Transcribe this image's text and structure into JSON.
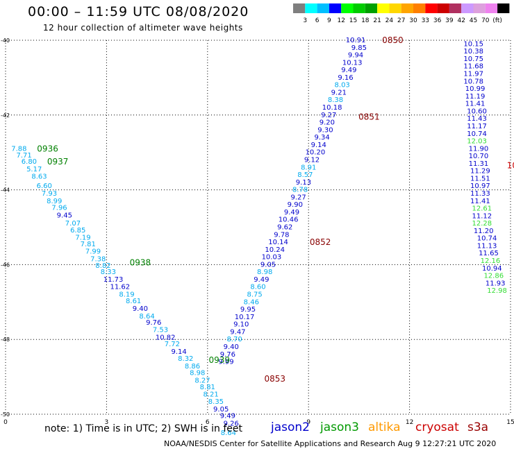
{
  "header": {
    "title": "00:00 – 11:59 UTC 08/08/2020",
    "subtitle": "12 hour collection of altimeter wave heights"
  },
  "colorbar": {
    "colors": [
      "#7f7f7f",
      "#00ffff",
      "#00bfff",
      "#0000ff",
      "#00ff00",
      "#00cc00",
      "#00a000",
      "#ffff00",
      "#ffd700",
      "#ffa500",
      "#ff7f00",
      "#ff0000",
      "#cc0000",
      "#b03060",
      "#cc99ff",
      "#dda0dd",
      "#ee82ee",
      "#000000"
    ],
    "labels": [
      "3",
      "6",
      "9",
      "12",
      "15",
      "18",
      "21",
      "24",
      "27",
      "30",
      "33",
      "36",
      "39",
      "42",
      "45",
      "70",
      "(ft)"
    ]
  },
  "footer": {
    "note": "note:  1) Time is in UTC;  2) SWH is in feet",
    "credit": "NOAA/NESDIS Center for Satellite Applications and Research    Aug  9 12:27:21 UTC 2020"
  },
  "legend": [
    {
      "name": "jason2",
      "color": "#0000cc"
    },
    {
      "name": "jason3",
      "color": "#009900"
    },
    {
      "name": "altika",
      "color": "#ff9900"
    },
    {
      "name": "cryosat",
      "color": "#cc0000"
    },
    {
      "name": "s3a",
      "color": "#990000"
    }
  ],
  "chart_data": {
    "type": "scatter",
    "title": "00:00 – 11:59 UTC 08/08/2020",
    "xlabel": "",
    "ylabel": "",
    "x_ticks": [
      0,
      3,
      6,
      9,
      12,
      15
    ],
    "y_ticks": [
      "-40",
      "-42",
      "-44",
      "-46",
      "-48",
      "-50"
    ],
    "xlim": [
      0,
      15
    ],
    "ylim": [
      -50,
      -40
    ],
    "grid": true,
    "time_labels": [
      {
        "text": "0936",
        "color": "#008000",
        "x": 1.25,
        "y": -42.9
      },
      {
        "text": "0937",
        "color": "#008000",
        "x": 1.55,
        "y": -43.25
      },
      {
        "text": "0938",
        "color": "#008000",
        "x": 4.0,
        "y": -45.95
      },
      {
        "text": "0939",
        "color": "#008000",
        "x": 6.35,
        "y": -48.55
      },
      {
        "text": "0850",
        "color": "#880000",
        "x": 11.5,
        "y": -40.0
      },
      {
        "text": "0851",
        "color": "#880000",
        "x": 10.8,
        "y": -42.05
      },
      {
        "text": "0852",
        "color": "#880000",
        "x": 9.35,
        "y": -45.4
      },
      {
        "text": "0853",
        "color": "#880000",
        "x": 8.0,
        "y": -49.05
      },
      {
        "text": "10",
        "color": "#cc0000",
        "x": 15.05,
        "y": -43.35
      }
    ],
    "series": [
      {
        "name": "jason3 pass 1",
        "points": [
          {
            "x": 0.4,
            "y": -42.9,
            "v": "7.88",
            "c": "#00aaee"
          },
          {
            "x": 0.55,
            "y": -43.08,
            "v": "7.71",
            "c": "#00aaee"
          },
          {
            "x": 0.7,
            "y": -43.25,
            "v": "6.80",
            "c": "#00aaee"
          },
          {
            "x": 0.85,
            "y": -43.45,
            "v": "5.17",
            "c": "#00aaee"
          },
          {
            "x": 1.0,
            "y": -43.65,
            "v": "8.63",
            "c": "#00aaee"
          },
          {
            "x": 1.15,
            "y": -43.9,
            "v": "6.60",
            "c": "#00aaee"
          },
          {
            "x": 1.3,
            "y": -44.1,
            "v": "7.93",
            "c": "#00aaee"
          },
          {
            "x": 1.45,
            "y": -44.3,
            "v": "8.99",
            "c": "#00aaee"
          },
          {
            "x": 1.6,
            "y": -44.48,
            "v": "7.96",
            "c": "#00aaee"
          },
          {
            "x": 1.75,
            "y": -44.68,
            "v": "9.45",
            "c": "#0000cc"
          },
          {
            "x": 2.0,
            "y": -44.9,
            "v": "7.07",
            "c": "#00aaee"
          },
          {
            "x": 2.15,
            "y": -45.08,
            "v": "6.85",
            "c": "#00aaee"
          },
          {
            "x": 2.3,
            "y": -45.28,
            "v": "7.19",
            "c": "#00aaee"
          },
          {
            "x": 2.45,
            "y": -45.45,
            "v": "7.81",
            "c": "#00aaee"
          },
          {
            "x": 2.6,
            "y": -45.65,
            "v": "7.99",
            "c": "#00aaee"
          },
          {
            "x": 2.75,
            "y": -45.85,
            "v": "7.38",
            "c": "#00aaee"
          },
          {
            "x": 2.9,
            "y": -46.03,
            "v": "8.82",
            "c": "#00aaee"
          },
          {
            "x": 3.05,
            "y": -46.2,
            "v": "8.33",
            "c": "#00aaee"
          },
          {
            "x": 3.2,
            "y": -46.4,
            "v": "11.73",
            "c": "#0000cc"
          },
          {
            "x": 3.4,
            "y": -46.6,
            "v": "11.62",
            "c": "#0000cc"
          },
          {
            "x": 3.6,
            "y": -46.8,
            "v": "8.19",
            "c": "#00aaee"
          },
          {
            "x": 3.8,
            "y": -46.98,
            "v": "8.61",
            "c": "#00aaee"
          },
          {
            "x": 4.0,
            "y": -47.18,
            "v": "9.40",
            "c": "#0000cc"
          },
          {
            "x": 4.2,
            "y": -47.38,
            "v": "8.64",
            "c": "#00aaee"
          },
          {
            "x": 4.4,
            "y": -47.55,
            "v": "9.76",
            "c": "#0000cc"
          },
          {
            "x": 4.6,
            "y": -47.75,
            "v": "7.53",
            "c": "#00aaee"
          },
          {
            "x": 4.75,
            "y": -47.95,
            "v": "10.82",
            "c": "#0000cc"
          },
          {
            "x": 4.95,
            "y": -48.13,
            "v": "7.72",
            "c": "#00aaee"
          },
          {
            "x": 5.15,
            "y": -48.33,
            "v": "9.14",
            "c": "#0000cc"
          },
          {
            "x": 5.35,
            "y": -48.52,
            "v": "8.32",
            "c": "#00aaee"
          },
          {
            "x": 5.55,
            "y": -48.72,
            "v": "8.86",
            "c": "#00aaee"
          },
          {
            "x": 5.7,
            "y": -48.9,
            "v": "8.98",
            "c": "#00aaee"
          },
          {
            "x": 5.85,
            "y": -49.1,
            "v": "8.27",
            "c": "#00aaee"
          },
          {
            "x": 6.0,
            "y": -49.28,
            "v": "8.81",
            "c": "#00aaee"
          },
          {
            "x": 6.1,
            "y": -49.47,
            "v": "8.21",
            "c": "#00aaee"
          },
          {
            "x": 6.25,
            "y": -49.67,
            "v": "8.35",
            "c": "#00aaee"
          },
          {
            "x": 6.4,
            "y": -49.87,
            "v": "9.05",
            "c": "#0000cc"
          },
          {
            "x": 6.6,
            "y": -50.05,
            "v": "9.49",
            "c": "#0000cc"
          },
          {
            "x": 6.7,
            "y": -50.25,
            "v": "9.26",
            "c": "#0000cc"
          },
          {
            "x": 6.62,
            "y": -50.5,
            "v": "8.64",
            "c": "#00aaee"
          }
        ]
      },
      {
        "name": "jason3 pass 2",
        "points": [
          {
            "x": 10.4,
            "y": -40.0,
            "v": "10.91",
            "c": "#0000cc"
          },
          {
            "x": 10.5,
            "y": -40.2,
            "v": "9.85",
            "c": "#0000cc"
          },
          {
            "x": 10.4,
            "y": -40.4,
            "v": "9.94",
            "c": "#0000cc"
          },
          {
            "x": 10.3,
            "y": -40.6,
            "v": "10.13",
            "c": "#0000cc"
          },
          {
            "x": 10.2,
            "y": -40.8,
            "v": "9.49",
            "c": "#0000cc"
          },
          {
            "x": 10.1,
            "y": -41.0,
            "v": "9.16",
            "c": "#0000cc"
          },
          {
            "x": 10.0,
            "y": -41.2,
            "v": "8.03",
            "c": "#00aaee"
          },
          {
            "x": 9.9,
            "y": -41.4,
            "v": "9.21",
            "c": "#0000cc"
          },
          {
            "x": 9.8,
            "y": -41.6,
            "v": "8.38",
            "c": "#00aaee"
          },
          {
            "x": 9.7,
            "y": -41.8,
            "v": "10.18",
            "c": "#0000cc"
          },
          {
            "x": 9.6,
            "y": -42.0,
            "v": "9.27",
            "c": "#0000cc"
          },
          {
            "x": 9.55,
            "y": -42.2,
            "v": "9.20",
            "c": "#0000cc"
          },
          {
            "x": 9.5,
            "y": -42.4,
            "v": "9.30",
            "c": "#0000cc"
          },
          {
            "x": 9.4,
            "y": -42.6,
            "v": "9.34",
            "c": "#0000cc"
          },
          {
            "x": 9.3,
            "y": -42.8,
            "v": "9.14",
            "c": "#0000cc"
          },
          {
            "x": 9.2,
            "y": -43.0,
            "v": "10.20",
            "c": "#0000cc"
          },
          {
            "x": 9.1,
            "y": -43.2,
            "v": "9.12",
            "c": "#0000cc"
          },
          {
            "x": 9.0,
            "y": -43.4,
            "v": "8.91",
            "c": "#00aaee"
          },
          {
            "x": 8.9,
            "y": -43.6,
            "v": "8.57",
            "c": "#00aaee"
          },
          {
            "x": 8.85,
            "y": -43.8,
            "v": "9.13",
            "c": "#0000cc"
          },
          {
            "x": 8.75,
            "y": -44.0,
            "v": "8.78",
            "c": "#00aaee"
          },
          {
            "x": 8.7,
            "y": -44.2,
            "v": "9.27",
            "c": "#0000cc"
          },
          {
            "x": 8.6,
            "y": -44.4,
            "v": "9.90",
            "c": "#0000cc"
          },
          {
            "x": 8.5,
            "y": -44.6,
            "v": "9.49",
            "c": "#0000cc"
          },
          {
            "x": 8.4,
            "y": -44.8,
            "v": "10.46",
            "c": "#0000cc"
          },
          {
            "x": 8.3,
            "y": -45.0,
            "v": "9.62",
            "c": "#0000cc"
          },
          {
            "x": 8.2,
            "y": -45.2,
            "v": "9.78",
            "c": "#0000cc"
          },
          {
            "x": 8.1,
            "y": -45.4,
            "v": "10.14",
            "c": "#0000cc"
          },
          {
            "x": 8.0,
            "y": -45.6,
            "v": "10.24",
            "c": "#0000cc"
          },
          {
            "x": 7.9,
            "y": -45.8,
            "v": "10.03",
            "c": "#0000cc"
          },
          {
            "x": 7.8,
            "y": -46.0,
            "v": "9.05",
            "c": "#0000cc"
          },
          {
            "x": 7.7,
            "y": -46.2,
            "v": "8.98",
            "c": "#00aaee"
          },
          {
            "x": 7.6,
            "y": -46.4,
            "v": "9.49",
            "c": "#0000cc"
          },
          {
            "x": 7.5,
            "y": -46.6,
            "v": "8.60",
            "c": "#00aaee"
          },
          {
            "x": 7.4,
            "y": -46.8,
            "v": "8.75",
            "c": "#00aaee"
          },
          {
            "x": 7.3,
            "y": -47.0,
            "v": "8.46",
            "c": "#00aaee"
          },
          {
            "x": 7.2,
            "y": -47.2,
            "v": "9.95",
            "c": "#0000cc"
          },
          {
            "x": 7.1,
            "y": -47.4,
            "v": "10.17",
            "c": "#0000cc"
          },
          {
            "x": 7.0,
            "y": -47.6,
            "v": "9.10",
            "c": "#0000cc"
          },
          {
            "x": 6.9,
            "y": -47.8,
            "v": "9.47",
            "c": "#0000cc"
          },
          {
            "x": 6.8,
            "y": -48.0,
            "v": "8.70",
            "c": "#00aaee"
          },
          {
            "x": 6.7,
            "y": -48.2,
            "v": "9.40",
            "c": "#0000cc"
          },
          {
            "x": 6.6,
            "y": -48.4,
            "v": "9.76",
            "c": "#0000cc"
          },
          {
            "x": 6.55,
            "y": -48.6,
            "v": "9.99",
            "c": "#0000cc"
          }
        ]
      },
      {
        "name": "jason2 pass",
        "points": [
          {
            "x": 13.9,
            "y": -40.1,
            "v": "10.15",
            "c": "#0000cc"
          },
          {
            "x": 13.9,
            "y": -40.3,
            "v": "10.38",
            "c": "#0000cc"
          },
          {
            "x": 13.9,
            "y": -40.5,
            "v": "10.75",
            "c": "#0000cc"
          },
          {
            "x": 13.9,
            "y": -40.7,
            "v": "11.68",
            "c": "#0000cc"
          },
          {
            "x": 13.9,
            "y": -40.9,
            "v": "11.97",
            "c": "#0000cc"
          },
          {
            "x": 13.9,
            "y": -41.1,
            "v": "10.78",
            "c": "#0000cc"
          },
          {
            "x": 13.95,
            "y": -41.3,
            "v": "10.99",
            "c": "#0000cc"
          },
          {
            "x": 13.95,
            "y": -41.5,
            "v": "11.19",
            "c": "#0000cc"
          },
          {
            "x": 13.95,
            "y": -41.7,
            "v": "11.41",
            "c": "#0000cc"
          },
          {
            "x": 14.0,
            "y": -41.9,
            "v": "10.60",
            "c": "#0000cc"
          },
          {
            "x": 14.0,
            "y": -42.1,
            "v": "11.43",
            "c": "#0000cc"
          },
          {
            "x": 14.0,
            "y": -42.3,
            "v": "11.17",
            "c": "#0000cc"
          },
          {
            "x": 14.0,
            "y": -42.5,
            "v": "10.74",
            "c": "#0000cc"
          },
          {
            "x": 14.0,
            "y": -42.7,
            "v": "12.03",
            "c": "#33dd33"
          },
          {
            "x": 14.05,
            "y": -42.9,
            "v": "11.90",
            "c": "#0000cc"
          },
          {
            "x": 14.05,
            "y": -43.1,
            "v": "10.70",
            "c": "#0000cc"
          },
          {
            "x": 14.05,
            "y": -43.3,
            "v": "11.31",
            "c": "#0000cc"
          },
          {
            "x": 14.1,
            "y": -43.5,
            "v": "11.29",
            "c": "#0000cc"
          },
          {
            "x": 14.1,
            "y": -43.7,
            "v": "11.51",
            "c": "#0000cc"
          },
          {
            "x": 14.1,
            "y": -43.9,
            "v": "10.97",
            "c": "#0000cc"
          },
          {
            "x": 14.1,
            "y": -44.1,
            "v": "11.33",
            "c": "#0000cc"
          },
          {
            "x": 14.1,
            "y": -44.3,
            "v": "11.41",
            "c": "#0000cc"
          },
          {
            "x": 14.15,
            "y": -44.5,
            "v": "12.61",
            "c": "#33dd33"
          },
          {
            "x": 14.15,
            "y": -44.7,
            "v": "11.12",
            "c": "#0000cc"
          },
          {
            "x": 14.15,
            "y": -44.9,
            "v": "12.28",
            "c": "#33dd33"
          },
          {
            "x": 14.2,
            "y": -45.1,
            "v": "11.20",
            "c": "#0000cc"
          },
          {
            "x": 14.3,
            "y": -45.3,
            "v": "10.74",
            "c": "#0000cc"
          },
          {
            "x": 14.3,
            "y": -45.5,
            "v": "11.13",
            "c": "#0000cc"
          },
          {
            "x": 14.35,
            "y": -45.7,
            "v": "11.65",
            "c": "#0000cc"
          },
          {
            "x": 14.4,
            "y": -45.9,
            "v": "12.16",
            "c": "#33dd33"
          },
          {
            "x": 14.45,
            "y": -46.1,
            "v": "10.94",
            "c": "#0000cc"
          },
          {
            "x": 14.5,
            "y": -46.3,
            "v": "12.86",
            "c": "#33dd33"
          },
          {
            "x": 14.55,
            "y": -46.5,
            "v": "11.93",
            "c": "#0000cc"
          },
          {
            "x": 14.6,
            "y": -46.7,
            "v": "12.98",
            "c": "#33dd33"
          }
        ]
      }
    ]
  }
}
